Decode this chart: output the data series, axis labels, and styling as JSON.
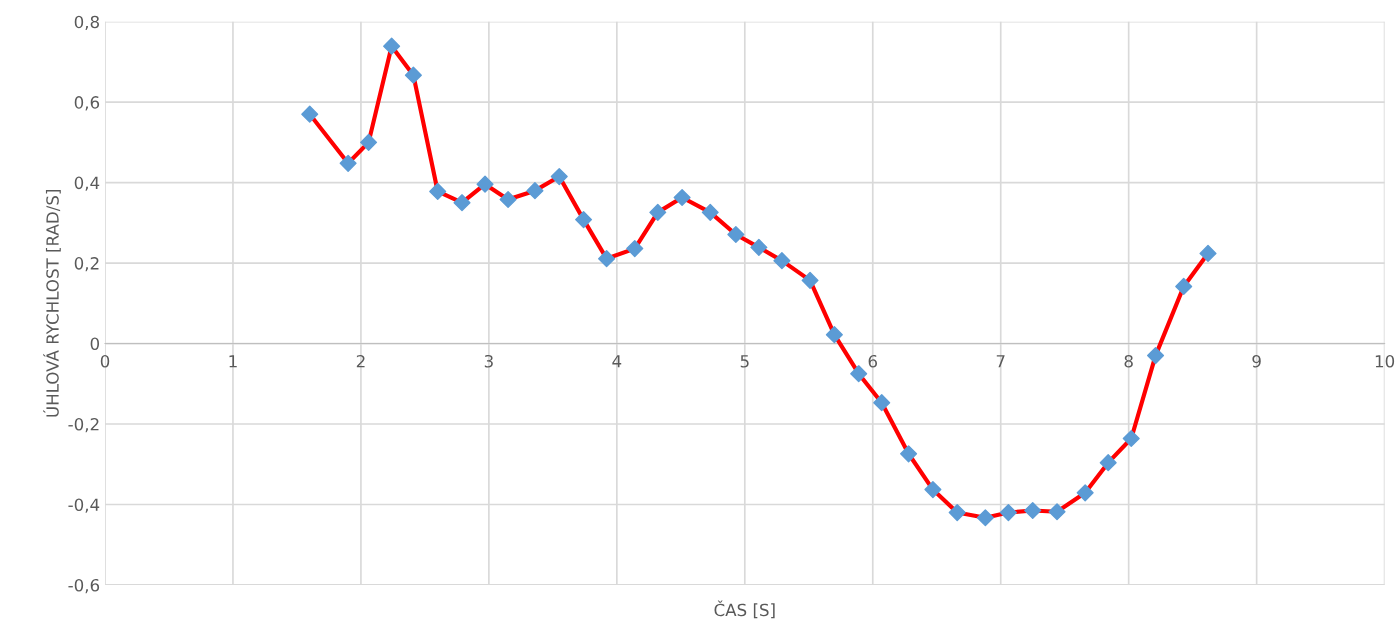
{
  "chart_data": {
    "type": "line",
    "xlabel": "ČAS [S]",
    "ylabel": "ÚHLOVÁ RYCHLOST [RAD/S]",
    "xlim": [
      0,
      10
    ],
    "xticks": [
      0,
      1,
      2,
      3,
      4,
      5,
      6,
      7,
      8,
      9,
      10
    ],
    "ylim": [
      -0.6,
      0.8
    ],
    "yticks": [
      {
        "value": -0.6,
        "label": "-0,6"
      },
      {
        "value": -0.4,
        "label": "-0,4"
      },
      {
        "value": -0.2,
        "label": "-0,2"
      },
      {
        "value": 0,
        "label": "0"
      },
      {
        "value": 0.2,
        "label": "0,2"
      },
      {
        "value": 0.4,
        "label": "0,4"
      },
      {
        "value": 0.6,
        "label": "0,6"
      },
      {
        "value": 0.8,
        "label": "0,8"
      }
    ],
    "grid": true,
    "marker": "diamond",
    "line_style": "solid",
    "series": [
      {
        "color": "#ff0000",
        "colors": [
          "#5b9bd5",
          "#5b9bd5",
          "#5b9bd5",
          "#5b9bd5",
          "#5b9bd5",
          "#5b9bd5",
          "#5b9bd5",
          "#5b9bd5",
          "#5b9bd5",
          "#5b9bd5",
          "#5b9bd5",
          "#5b9bd5",
          "#5b9bd5",
          "#5b9bd5",
          "#5b9bd5",
          "#5b9bd5",
          "#5b9bd5",
          "#5b9bd5",
          "#5b9bd5",
          "#5b9bd5",
          "#5b9bd5",
          "#5b9bd5",
          "#5b9bd5",
          "#5b9bd5",
          "#5b9bd5",
          "#5b9bd5",
          "#5b9bd5",
          "#5b9bd5",
          "#5b9bd5",
          "#5b9bd5",
          "#5b9bd5",
          "#5b9bd5",
          "#5b9bd5",
          "#5b9bd5",
          "#5b9bd5",
          "#5b9bd5",
          "#5b9bd5"
        ],
        "x": [
          1.6,
          1.9,
          2.06,
          2.24,
          2.41,
          2.6,
          2.79,
          2.97,
          3.15,
          3.36,
          3.55,
          3.74,
          3.92,
          4.14,
          4.32,
          4.51,
          4.73,
          4.93,
          5.11,
          5.29,
          5.51,
          5.7,
          5.89,
          6.07,
          6.28,
          6.47,
          6.66,
          6.88,
          7.06,
          7.25,
          7.44,
          7.66,
          7.84,
          8.02,
          8.21,
          8.43,
          8.62
        ],
        "values": [
          0.57,
          0.448,
          0.5,
          0.739,
          0.667,
          0.378,
          0.35,
          0.396,
          0.358,
          0.38,
          0.415,
          0.308,
          0.211,
          0.236,
          0.326,
          0.363,
          0.326,
          0.271,
          0.239,
          0.206,
          0.157,
          0.022,
          -0.075,
          -0.147,
          -0.274,
          -0.363,
          -0.42,
          -0.433,
          -0.42,
          -0.415,
          -0.418,
          -0.371,
          -0.296,
          -0.236,
          -0.03,
          0.142,
          0.224
        ]
      }
    ]
  }
}
